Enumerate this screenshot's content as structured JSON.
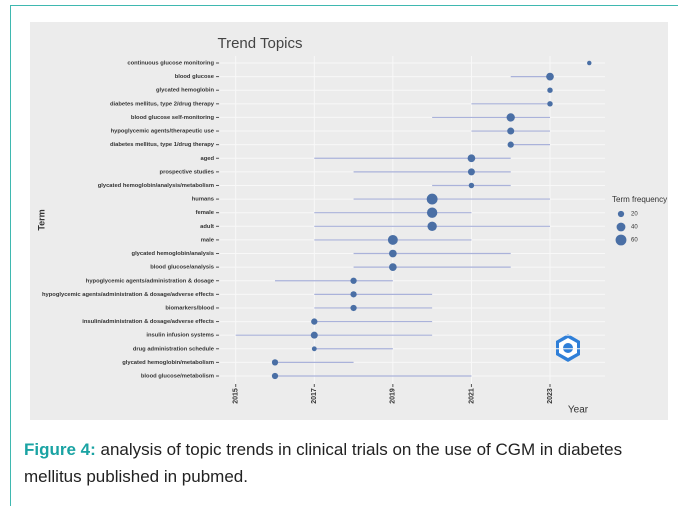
{
  "chart_data": {
    "type": "dotrange",
    "title": "Trend Topics",
    "xlabel": "Year",
    "ylabel": "Term",
    "categories": [
      "continuous glucose monitoring",
      "blood glucose",
      "glycated hemoglobin",
      "diabetes mellitus, type 2/drug therapy",
      "blood glucose self-monitoring",
      "hypoglycemic agents/therapeutic use",
      "diabetes mellitus, type 1/drug therapy",
      "aged",
      "prospective studies",
      "glycated hemoglobin/analysis/metabolism",
      "humans",
      "female",
      "adult",
      "male",
      "glycated hemoglobin/analysis",
      "blood glucose/analysis",
      "hypoglycemic agents/administration & dosage",
      "hypoglycemic agents/administration & dosage/adverse effects",
      "biomarkers/blood",
      "insulin/administration & dosage/adverse effects",
      "insulin infusion systems",
      "drug administration schedule",
      "glycated hemoglobin/metabolism",
      "blood glucose/metabolism"
    ],
    "values": [
      2024,
      2023,
      2023,
      2023,
      2022,
      2022,
      2022,
      2021,
      2021,
      2021,
      2020,
      2020,
      2020,
      2019,
      2019,
      2019,
      2018,
      2018,
      2018,
      2017,
      2017,
      2017,
      2016,
      2016
    ],
    "low": [
      2024,
      2022,
      2023,
      2021,
      2020,
      2021,
      2022,
      2017,
      2018,
      2020,
      2018,
      2017,
      2017,
      2017,
      2018,
      2018,
      2016,
      2017,
      2017,
      2017,
      2015,
      2017,
      2016,
      2016
    ],
    "high": [
      2024,
      2023,
      2023,
      2023,
      2023,
      2023,
      2023,
      2022,
      2022,
      2022,
      2023,
      2021,
      2023,
      2021,
      2022,
      2022,
      2019,
      2020,
      2020,
      2020,
      2020,
      2019,
      2018,
      2021
    ],
    "sizes": [
      10,
      30,
      15,
      15,
      35,
      25,
      20,
      30,
      25,
      15,
      60,
      55,
      45,
      50,
      30,
      30,
      20,
      20,
      20,
      20,
      25,
      12,
      20,
      20
    ],
    "dot_color": "#4a6fa5",
    "line_color": "#aab2da",
    "xlim": [
      2014.6,
      2024.4
    ],
    "xticks": [
      2015,
      2017,
      2019,
      2021,
      2023
    ],
    "legend_title": "Term frequency",
    "legend_sizes": [
      20,
      40,
      60
    ]
  },
  "caption": {
    "label": "Figure 4:",
    "text": " analysis of topic trends in clinical trials on the use of CGM in diabetes mellitus published in pubmed."
  }
}
